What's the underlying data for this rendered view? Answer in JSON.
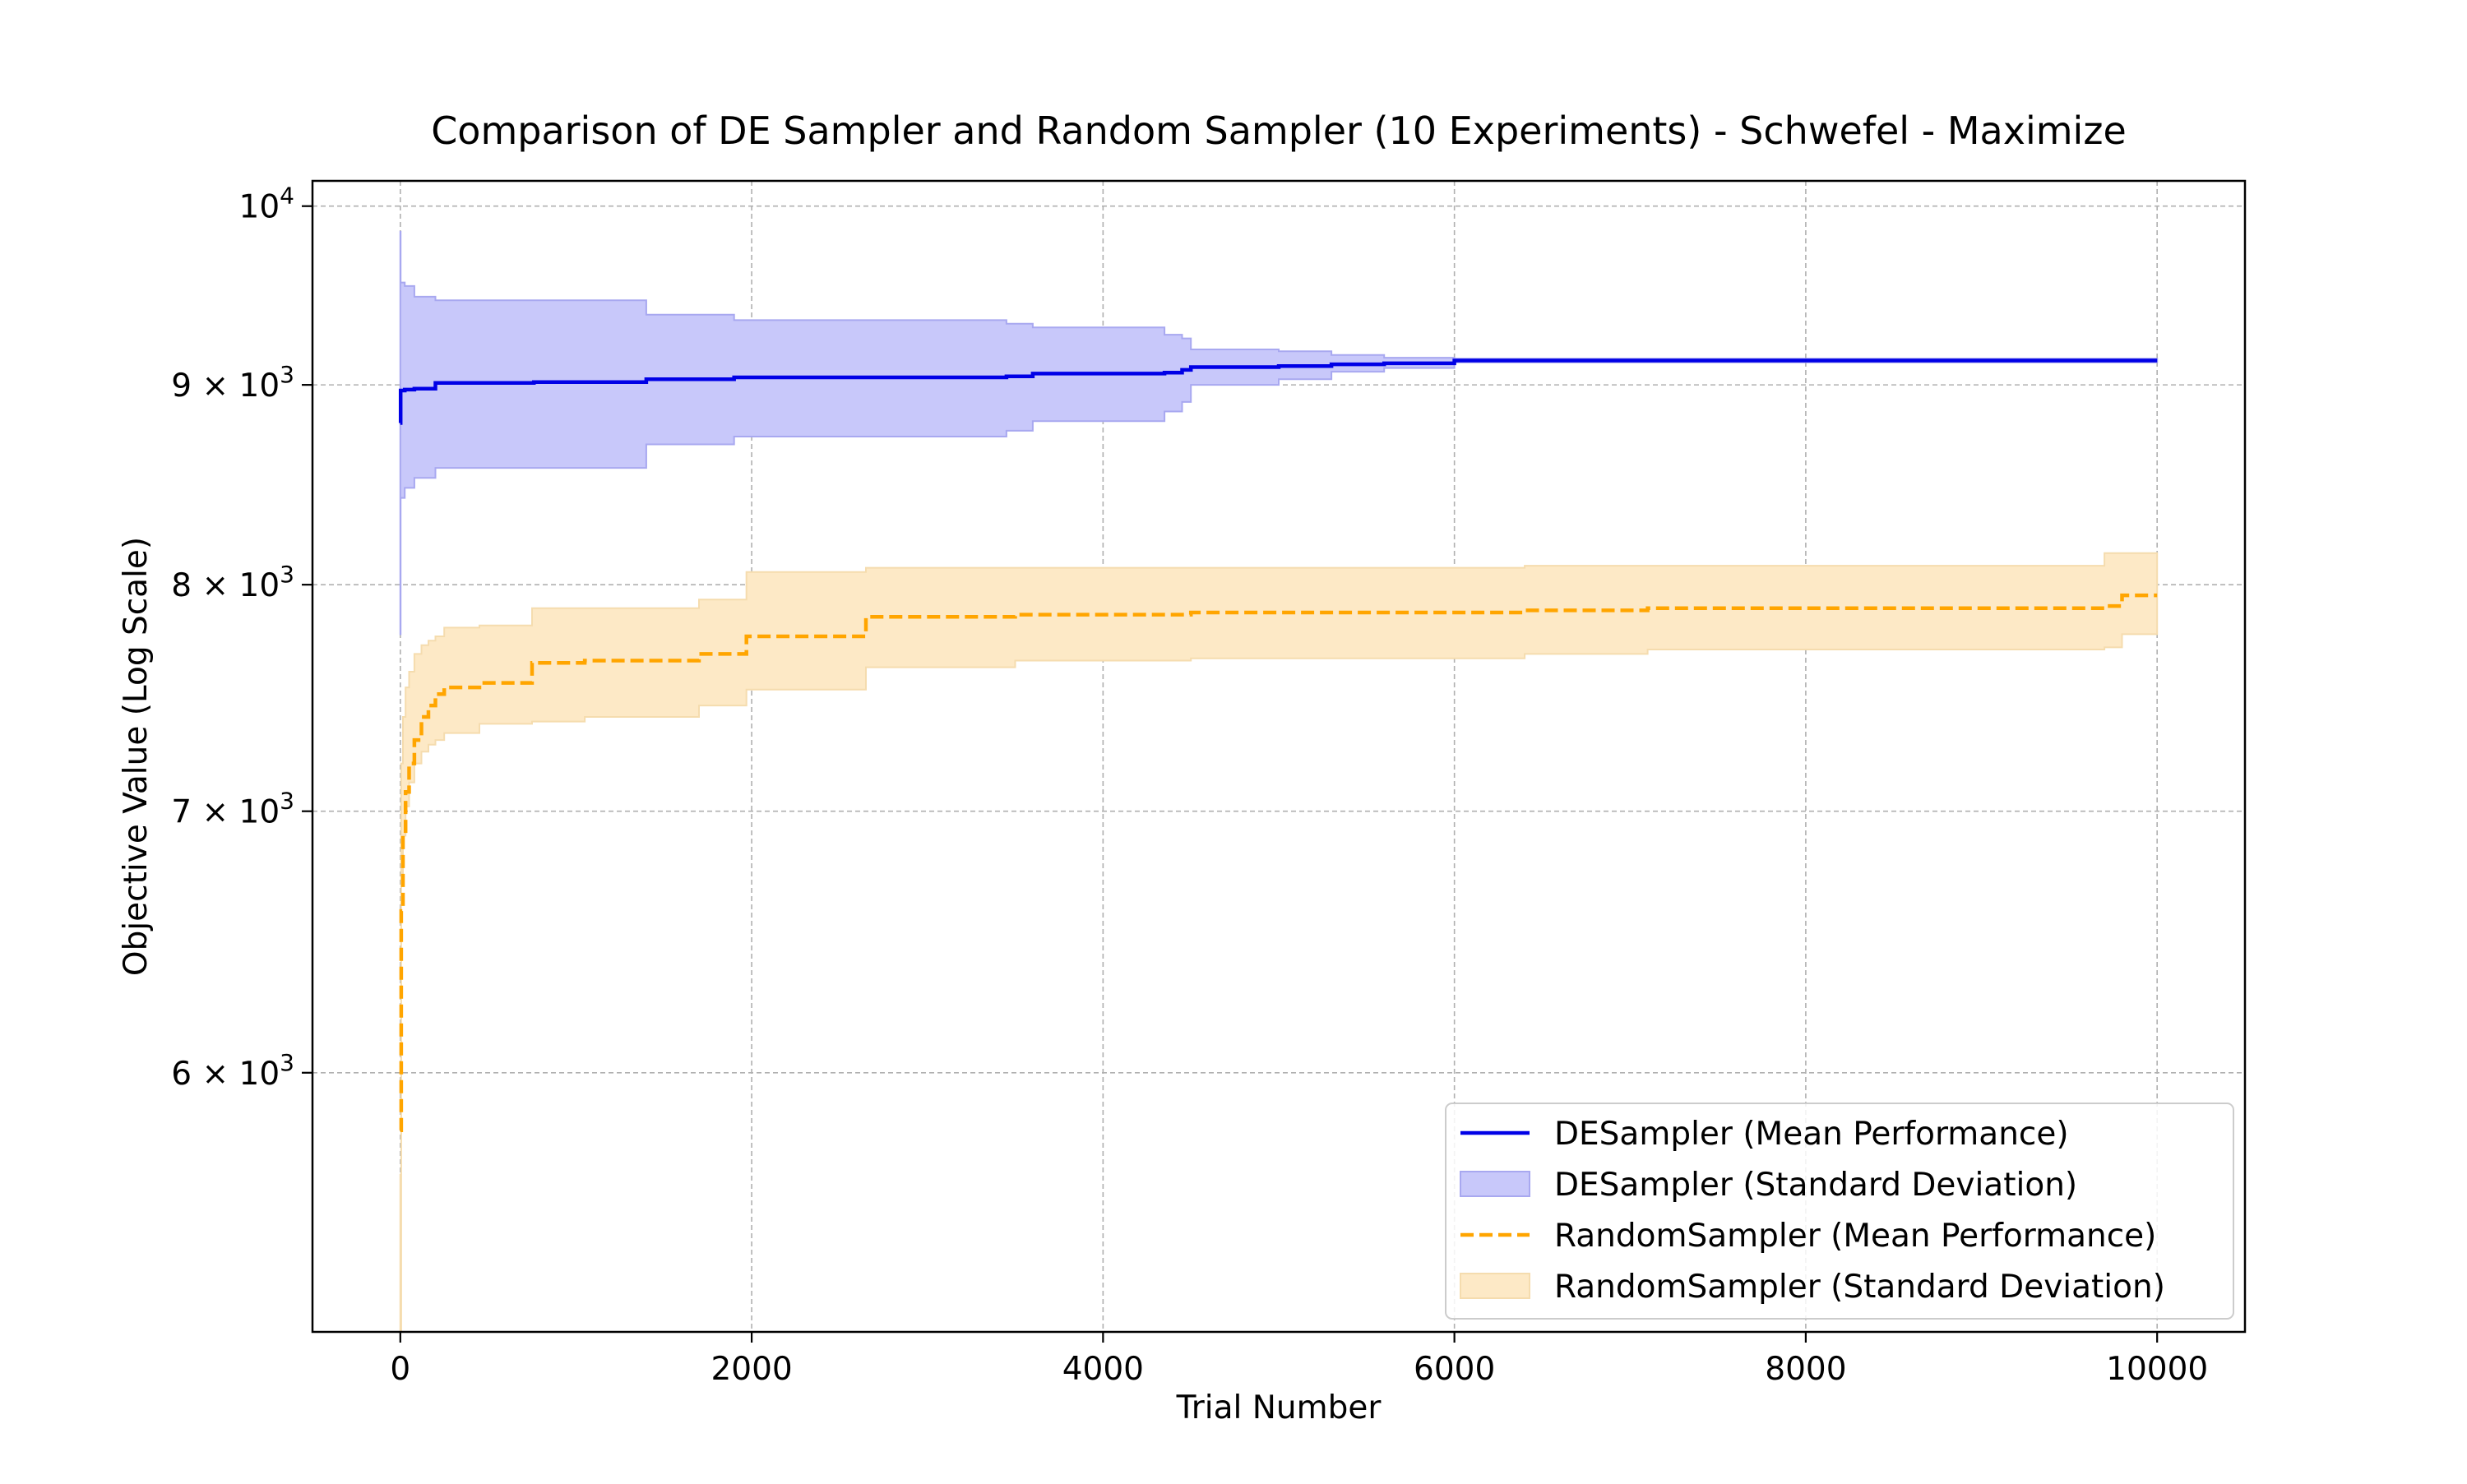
{
  "chart_data": {
    "type": "line",
    "title": "Comparison of DE Sampler and Random Sampler (10 Experiments) - Schwefel - Maximize",
    "xlabel": "Trial Number",
    "ylabel": "Objective Value (Log Scale)",
    "xlim": [
      -500,
      10500
    ],
    "ylim": [
      5150,
      10150
    ],
    "yscale": "log",
    "grid": true,
    "legend_position": "lower right",
    "x_ticks": [
      0,
      2000,
      4000,
      6000,
      8000,
      10000
    ],
    "x_tick_labels": [
      "0",
      "2000",
      "4000",
      "6000",
      "8000",
      "10000"
    ],
    "y_ticks": [
      {
        "value": 10000,
        "base": "10",
        "exp": "4",
        "mult": ""
      },
      {
        "value": 9000,
        "base": "10",
        "exp": "3",
        "mult": "9 × "
      },
      {
        "value": 8000,
        "base": "10",
        "exp": "3",
        "mult": "8 × "
      },
      {
        "value": 7000,
        "base": "10",
        "exp": "3",
        "mult": "7 × "
      },
      {
        "value": 6000,
        "base": "10",
        "exp": "3",
        "mult": "6 × "
      }
    ],
    "series": [
      {
        "name": "DESampler (Mean Performance)",
        "band_name": "DESampler (Standard Deviation)",
        "color": "#0000e6",
        "fill": "#c8c8fa",
        "fill_edge": "#a8a8f0",
        "style": "solid",
        "x": [
          0,
          2,
          25,
          80,
          200,
          760,
          1400,
          1900,
          3450,
          3600,
          4350,
          4450,
          4500,
          5000,
          5300,
          5600,
          6000,
          10000
        ],
        "mean": [
          8800,
          8970,
          8975,
          8980,
          9010,
          9015,
          9030,
          9040,
          9045,
          9060,
          9065,
          9080,
          9095,
          9100,
          9110,
          9115,
          9130,
          9130
        ],
        "upper": [
          9850,
          9560,
          9540,
          9480,
          9460,
          9460,
          9380,
          9350,
          9330,
          9310,
          9270,
          9250,
          9190,
          9180,
          9160,
          9145,
          9140,
          9140
        ],
        "lower": [
          7770,
          8420,
          8470,
          8520,
          8570,
          8570,
          8690,
          8730,
          8760,
          8810,
          8860,
          8910,
          9000,
          9030,
          9070,
          9090,
          9120,
          9120
        ]
      },
      {
        "name": "RandomSampler (Mean Performance)",
        "band_name": "RandomSampler (Standard Deviation)",
        "color": "#ffa500",
        "fill": "#fde9c6",
        "fill_edge": "#f5dcae",
        "style": "dashed",
        "x": [
          0,
          5,
          15,
          30,
          50,
          80,
          120,
          160,
          200,
          250,
          450,
          750,
          1050,
          1700,
          1970,
          2650,
          3500,
          4500,
          6400,
          7100,
          9700,
          9800,
          10000
        ],
        "mean": [
          5800,
          6600,
          6900,
          7080,
          7200,
          7300,
          7400,
          7450,
          7500,
          7530,
          7550,
          7640,
          7650,
          7680,
          7760,
          7850,
          7860,
          7870,
          7880,
          7890,
          7900,
          7950,
          7950
        ],
        "upper": [
          5650,
          7200,
          7400,
          7530,
          7600,
          7680,
          7720,
          7740,
          7760,
          7800,
          7810,
          7890,
          7890,
          7930,
          8060,
          8080,
          8080,
          8080,
          8090,
          8090,
          8150,
          8150,
          8150
        ],
        "lower": [
          5150,
          6700,
          6900,
          7020,
          7120,
          7200,
          7250,
          7280,
          7300,
          7330,
          7370,
          7380,
          7400,
          7450,
          7520,
          7620,
          7650,
          7660,
          7680,
          7700,
          7710,
          7770,
          7770
        ]
      }
    ]
  }
}
